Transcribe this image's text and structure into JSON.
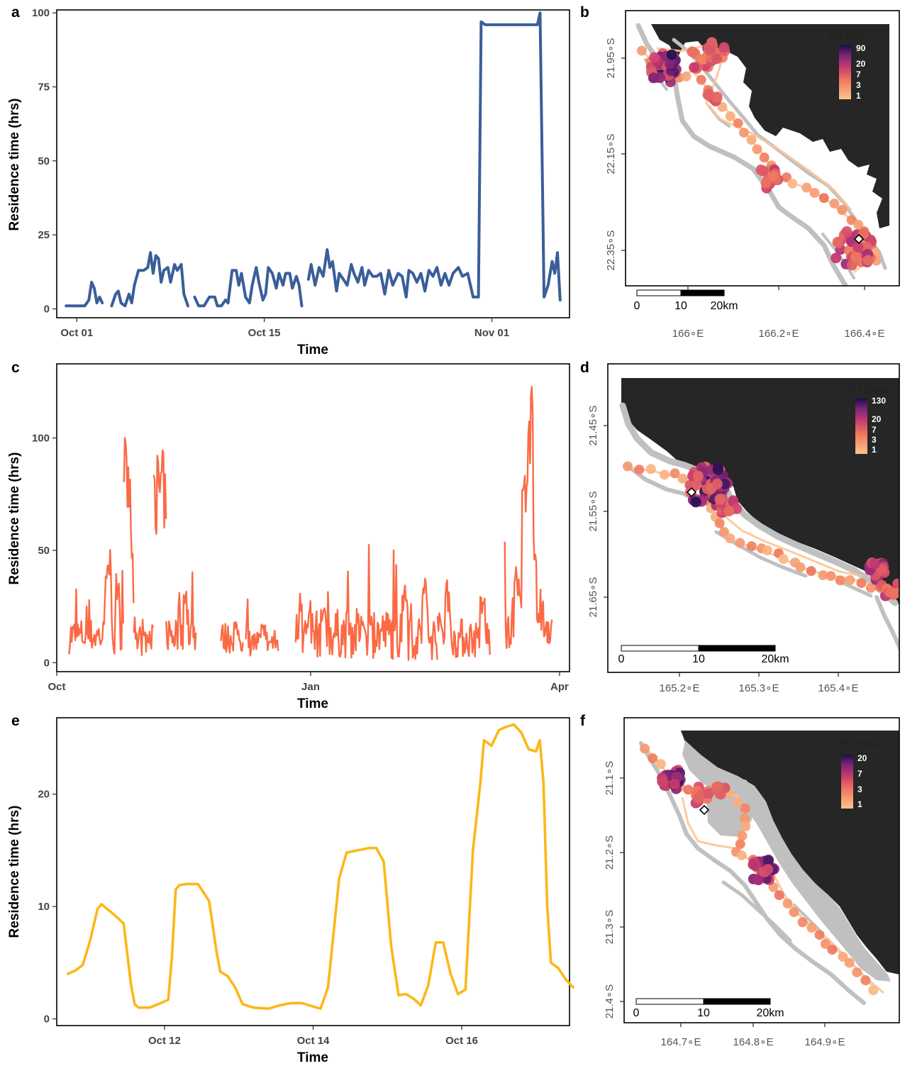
{
  "colors": {
    "series_a": "#3a5e9a",
    "series_c": "#fb6a45",
    "series_e": "#fbb817",
    "land": "#262626",
    "reef": "#c0c0c0",
    "track": "#fdc594",
    "rt_low": "#fcbd85",
    "rt_mid": "#d9436b",
    "rt_high": "#2c0f66"
  },
  "chart_data": [
    {
      "panel": "a",
      "type": "line",
      "xlabel": "Time",
      "ylabel": "Residence time (hrs)",
      "xlim": [
        -1.5,
        36.8
      ],
      "ylim": [
        -3,
        101
      ],
      "yticks": [
        0,
        25,
        50,
        75,
        100
      ],
      "xticks": [
        {
          "value": 0,
          "label": "Oct 01"
        },
        {
          "value": 14,
          "label": "Oct 15"
        },
        {
          "value": 31,
          "label": "Nov 01"
        }
      ],
      "x_unit": "days since Sep 30",
      "segments": [
        [
          [
            -0.8,
            1
          ],
          [
            0,
            1
          ],
          [
            0.6,
            1
          ],
          [
            0.9,
            3
          ],
          [
            1.1,
            9
          ],
          [
            1.3,
            7
          ],
          [
            1.5,
            2
          ],
          [
            1.7,
            4
          ],
          [
            1.9,
            2
          ]
        ],
        [
          [
            2.6,
            1
          ],
          [
            2.9,
            5
          ],
          [
            3.1,
            6
          ],
          [
            3.3,
            2
          ],
          [
            3.6,
            1
          ],
          [
            3.9,
            5
          ],
          [
            4.1,
            2
          ],
          [
            4.3,
            8
          ],
          [
            4.6,
            13
          ],
          [
            5.0,
            13
          ],
          [
            5.3,
            14
          ],
          [
            5.5,
            19
          ],
          [
            5.7,
            12
          ],
          [
            5.9,
            18
          ],
          [
            6.1,
            17
          ],
          [
            6.3,
            9
          ],
          [
            6.5,
            13
          ],
          [
            6.8,
            14
          ],
          [
            7.0,
            9
          ],
          [
            7.3,
            15
          ],
          [
            7.5,
            13
          ],
          [
            7.8,
            15
          ],
          [
            8.0,
            5
          ],
          [
            8.3,
            1
          ]
        ],
        [
          [
            8.8,
            4
          ],
          [
            9.1,
            1
          ],
          [
            9.5,
            1
          ],
          [
            9.9,
            4
          ],
          [
            10.3,
            4
          ],
          [
            10.5,
            1
          ],
          [
            10.8,
            1
          ],
          [
            11.1,
            3
          ],
          [
            11.3,
            2
          ],
          [
            11.6,
            13
          ],
          [
            11.9,
            13
          ],
          [
            12.1,
            8
          ],
          [
            12.3,
            12
          ],
          [
            12.6,
            4
          ],
          [
            12.9,
            2
          ],
          [
            13.1,
            8
          ],
          [
            13.4,
            14
          ],
          [
            13.6,
            9
          ],
          [
            13.9,
            3
          ],
          [
            14.1,
            5
          ],
          [
            14.3,
            14
          ],
          [
            14.6,
            12
          ],
          [
            14.9,
            7
          ],
          [
            15.1,
            12
          ],
          [
            15.4,
            8
          ],
          [
            15.6,
            12
          ],
          [
            15.9,
            12
          ],
          [
            16.1,
            7
          ],
          [
            16.4,
            11
          ],
          [
            16.6,
            8
          ],
          [
            16.8,
            1
          ]
        ]
      ]
    },
    {
      "panel": "c",
      "type": "line",
      "xlabel": "Time",
      "ylabel": "Residence time (hrs)",
      "xlim": [
        0,
        206
      ],
      "ylim": [
        -4,
        133
      ],
      "yticks": [
        0,
        50,
        100
      ],
      "xticks": [
        {
          "value": 0,
          "label": "Oct"
        },
        {
          "value": 102,
          "label": "Jan"
        },
        {
          "value": 202,
          "label": "Apr"
        }
      ]
    },
    {
      "panel": "e",
      "type": "line",
      "xlabel": "Time",
      "ylabel": "Residence time (hrs)",
      "xlim": [
        10.55,
        17.45
      ],
      "ylim": [
        -0.6,
        26.8
      ],
      "yticks": [
        0,
        10,
        20
      ],
      "xticks": [
        {
          "value": 12,
          "label": "Oct 12"
        },
        {
          "value": 14,
          "label": "Oct 14"
        },
        {
          "value": 16,
          "label": "Oct 16"
        }
      ],
      "points": [
        [
          10.7,
          4.0
        ],
        [
          10.8,
          4.3
        ],
        [
          10.9,
          4.8
        ],
        [
          11.0,
          7.0
        ],
        [
          11.1,
          9.8
        ],
        [
          11.15,
          10.2
        ],
        [
          11.3,
          9.4
        ],
        [
          11.45,
          8.5
        ],
        [
          11.55,
          3.0
        ],
        [
          11.6,
          1.3
        ],
        [
          11.65,
          1.0
        ],
        [
          11.8,
          1.0
        ],
        [
          11.95,
          1.4
        ],
        [
          12.05,
          1.7
        ],
        [
          12.1,
          5.5
        ],
        [
          12.15,
          11.5
        ],
        [
          12.2,
          11.9
        ],
        [
          12.3,
          12.0
        ],
        [
          12.45,
          12.0
        ],
        [
          12.6,
          10.5
        ],
        [
          12.7,
          6.0
        ],
        [
          12.75,
          4.2
        ],
        [
          12.85,
          3.8
        ],
        [
          12.95,
          2.8
        ],
        [
          13.05,
          1.3
        ],
        [
          13.2,
          1.0
        ],
        [
          13.4,
          0.9
        ],
        [
          13.55,
          1.2
        ],
        [
          13.7,
          1.4
        ],
        [
          13.85,
          1.4
        ],
        [
          14.0,
          1.1
        ],
        [
          14.1,
          0.9
        ],
        [
          14.2,
          2.8
        ],
        [
          14.35,
          12.5
        ],
        [
          14.45,
          14.8
        ],
        [
          14.6,
          15.0
        ],
        [
          14.75,
          15.2
        ],
        [
          14.85,
          15.2
        ],
        [
          14.95,
          14.0
        ],
        [
          15.05,
          6.5
        ],
        [
          15.15,
          2.1
        ],
        [
          15.25,
          2.2
        ],
        [
          15.35,
          1.8
        ],
        [
          15.45,
          1.2
        ],
        [
          15.55,
          3.0
        ],
        [
          15.65,
          6.8
        ],
        [
          15.75,
          6.8
        ],
        [
          15.85,
          4.0
        ],
        [
          15.95,
          2.2
        ],
        [
          16.05,
          2.6
        ],
        [
          16.15,
          15.0
        ],
        [
          16.25,
          21.0
        ],
        [
          16.3,
          24.8
        ],
        [
          16.4,
          24.3
        ],
        [
          16.5,
          25.7
        ],
        [
          16.6,
          26.0
        ],
        [
          16.7,
          26.2
        ],
        [
          16.8,
          25.5
        ],
        [
          16.9,
          24.0
        ],
        [
          17.0,
          23.8
        ],
        [
          17.05,
          24.8
        ],
        [
          17.1,
          21.0
        ],
        [
          17.15,
          10.0
        ],
        [
          17.2,
          5.0
        ],
        [
          17.3,
          4.5
        ],
        [
          17.4,
          3.5
        ],
        [
          17.5,
          2.8
        ]
      ]
    }
  ],
  "panels": {
    "a": {
      "label": "a"
    },
    "b": {
      "label": "b",
      "legend_title": "RT (hrs)",
      "legend_ticks": [
        "90",
        "20",
        "7",
        "3",
        "1"
      ],
      "lat_ticks": [
        "21.95∘S",
        "22.15∘S",
        "22.35∘S"
      ],
      "lon_ticks": [
        "166∘E",
        "166.2∘E",
        "166.4∘E"
      ],
      "scale_labels": [
        "0",
        "10",
        "20km"
      ]
    },
    "c": {
      "label": "c"
    },
    "d": {
      "label": "d",
      "legend_title": "RT (hrs)",
      "legend_ticks": [
        "130",
        "20",
        "7",
        "3",
        "1"
      ],
      "lat_ticks": [
        "21.45∘S",
        "21.55∘S",
        "21.65∘S"
      ],
      "lon_ticks": [
        "165.2∘E",
        "165.3∘E",
        "165.4∘E"
      ],
      "scale_labels": [
        "0",
        "10",
        "20km"
      ]
    },
    "e": {
      "label": "e"
    },
    "f": {
      "label": "f",
      "legend_title": "RT (hrs)",
      "legend_ticks": [
        "20",
        "7",
        "3",
        "1"
      ],
      "lat_ticks": [
        "21.1∘S",
        "21.2∘S",
        "21.3∘S",
        "21.4∘S"
      ],
      "lon_ticks": [
        "164.7∘E",
        "164.8∘E",
        "164.9∘E"
      ],
      "scale_labels": [
        "0",
        "10",
        "20km"
      ]
    }
  }
}
